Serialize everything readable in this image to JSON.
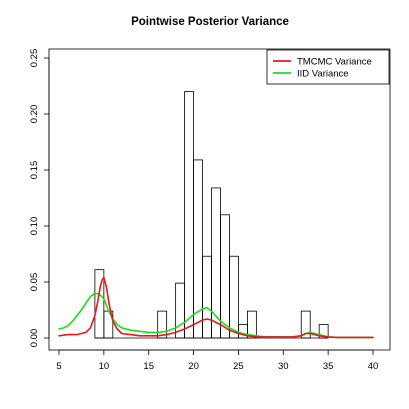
{
  "chart_data": {
    "type": "line",
    "title": "Pointwise Posterior Variance",
    "xlabel": "",
    "ylabel": "",
    "xlim": [
      5,
      40
    ],
    "ylim": [
      0,
      0.25
    ],
    "x_ticks": [
      5,
      10,
      15,
      20,
      25,
      30,
      35,
      40
    ],
    "y_ticks": [
      0.0,
      0.05,
      0.1,
      0.15,
      0.2,
      0.25
    ],
    "x_tick_labels": [
      "5",
      "10",
      "15",
      "20",
      "25",
      "30",
      "35",
      "40"
    ],
    "y_tick_labels": [
      "0.00",
      "0.05",
      "0.10",
      "0.15",
      "0.20",
      "0.25"
    ],
    "legend_position": "top-right",
    "histogram": {
      "bins": [
        {
          "x0": 9,
          "x1": 10,
          "height": 0.061
        },
        {
          "x0": 10,
          "x1": 11,
          "height": 0.024
        },
        {
          "x0": 16,
          "x1": 17,
          "height": 0.024
        },
        {
          "x0": 18,
          "x1": 19,
          "height": 0.049
        },
        {
          "x0": 19,
          "x1": 20,
          "height": 0.22
        },
        {
          "x0": 20,
          "x1": 21,
          "height": 0.159
        },
        {
          "x0": 21,
          "x1": 22,
          "height": 0.073
        },
        {
          "x0": 22,
          "x1": 23,
          "height": 0.134
        },
        {
          "x0": 23,
          "x1": 24,
          "height": 0.11
        },
        {
          "x0": 24,
          "x1": 25,
          "height": 0.073
        },
        {
          "x0": 25,
          "x1": 26,
          "height": 0.012
        },
        {
          "x0": 26,
          "x1": 27,
          "height": 0.024
        },
        {
          "x0": 32,
          "x1": 33,
          "height": 0.024
        },
        {
          "x0": 34,
          "x1": 35,
          "height": 0.012
        }
      ],
      "color": "#000000"
    },
    "series": [
      {
        "name": "TMCMC Variance",
        "color": "#e41a1c",
        "x": [
          5,
          6,
          7,
          8,
          8.5,
          9,
          9.3,
          9.6,
          9.8,
          10,
          10.3,
          10.6,
          11,
          11.5,
          12,
          13,
          14,
          15,
          16,
          17,
          18,
          19,
          20,
          21,
          21.5,
          22,
          23,
          24,
          25,
          26,
          27,
          28,
          29,
          30,
          31,
          32,
          32.5,
          33,
          33.5,
          34,
          35,
          36,
          37,
          38,
          39,
          40
        ],
        "y": [
          0.002,
          0.003,
          0.003,
          0.005,
          0.009,
          0.02,
          0.032,
          0.046,
          0.052,
          0.054,
          0.045,
          0.03,
          0.015,
          0.008,
          0.004,
          0.003,
          0.002,
          0.002,
          0.002,
          0.003,
          0.005,
          0.008,
          0.012,
          0.016,
          0.017,
          0.016,
          0.012,
          0.007,
          0.004,
          0.002,
          0.001,
          0.001,
          0.001,
          0.001,
          0.001,
          0.002,
          0.004,
          0.004,
          0.003,
          0.002,
          0.001,
          0.0005,
          0.0005,
          0.0005,
          0.0005,
          0.0005
        ]
      },
      {
        "name": "IID Variance",
        "color": "#1ae01a",
        "x": [
          5,
          5.5,
          6,
          6.5,
          7,
          7.5,
          8,
          8.5,
          9,
          9.5,
          10,
          10.5,
          11,
          11.5,
          12,
          13,
          14,
          15,
          16,
          17,
          18,
          19,
          20,
          21,
          21.5,
          22,
          23,
          24,
          25,
          26,
          27,
          28,
          29,
          30,
          31,
          32,
          32.5,
          33,
          33.5,
          34,
          35,
          36,
          37,
          38,
          39,
          40
        ],
        "y": [
          0.008,
          0.009,
          0.011,
          0.015,
          0.02,
          0.025,
          0.031,
          0.037,
          0.04,
          0.039,
          0.035,
          0.025,
          0.017,
          0.012,
          0.009,
          0.007,
          0.006,
          0.005,
          0.005,
          0.006,
          0.009,
          0.014,
          0.021,
          0.026,
          0.027,
          0.024,
          0.015,
          0.009,
          0.005,
          0.003,
          0.002,
          0.001,
          0.001,
          0.001,
          0.001,
          0.002,
          0.004,
          0.005,
          0.004,
          0.003,
          0.001,
          0.0005,
          0.0005,
          0.0005,
          0.0005,
          0.0005
        ]
      }
    ]
  }
}
